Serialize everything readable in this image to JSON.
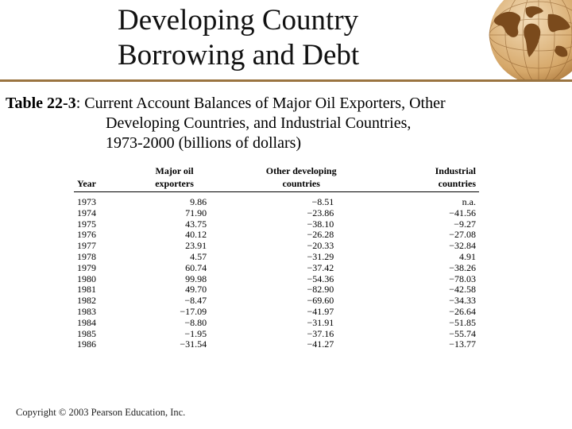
{
  "header": {
    "title_line1": "Developing Country",
    "title_line2": "Borrowing and Debt",
    "globe_icon": "globe-icon"
  },
  "caption": {
    "label": "Table 22-3",
    "line1_rest": ": Current Account Balances of Major Oil Exporters, Other",
    "line2": "Developing Countries, and Industrial Countries,",
    "line3": "1973-2000 (billions of dollars)"
  },
  "table": {
    "headers": {
      "year": "Year",
      "col1_a": "Major oil",
      "col1_b": "exporters",
      "col2_a": "Other developing",
      "col2_b": "countries",
      "col3_a": "Industrial",
      "col3_b": "countries"
    },
    "rows": [
      [
        "1973",
        "9.86",
        "−8.51",
        "n.a."
      ],
      [
        "1974",
        "71.90",
        "−23.86",
        "−41.56"
      ],
      [
        "1975",
        "43.75",
        "−38.10",
        "−9.27"
      ],
      [
        "1976",
        "40.12",
        "−26.28",
        "−27.08"
      ],
      [
        "1977",
        "23.91",
        "−20.33",
        "−32.84"
      ],
      [
        "1978",
        "4.57",
        "−31.29",
        "4.91"
      ],
      [
        "1979",
        "60.74",
        "−37.42",
        "−38.26"
      ],
      [
        "1980",
        "99.98",
        "−54.36",
        "−78.03"
      ],
      [
        "1981",
        "49.70",
        "−82.90",
        "−42.58"
      ],
      [
        "1982",
        "−8.47",
        "−69.60",
        "−34.33"
      ],
      [
        "1983",
        "−17.09",
        "−41.97",
        "−26.64"
      ],
      [
        "1984",
        "−8.80",
        "−31.91",
        "−51.85"
      ],
      [
        "1985",
        "−1.95",
        "−37.16",
        "−55.74"
      ],
      [
        "1986",
        "−31.54",
        "−41.27",
        "−13.77"
      ]
    ]
  },
  "footer": {
    "copyright": "Copyright © 2003 Pearson Education, Inc."
  },
  "colors": {
    "rule": "#9a7440",
    "globe": "#8a5a28"
  }
}
